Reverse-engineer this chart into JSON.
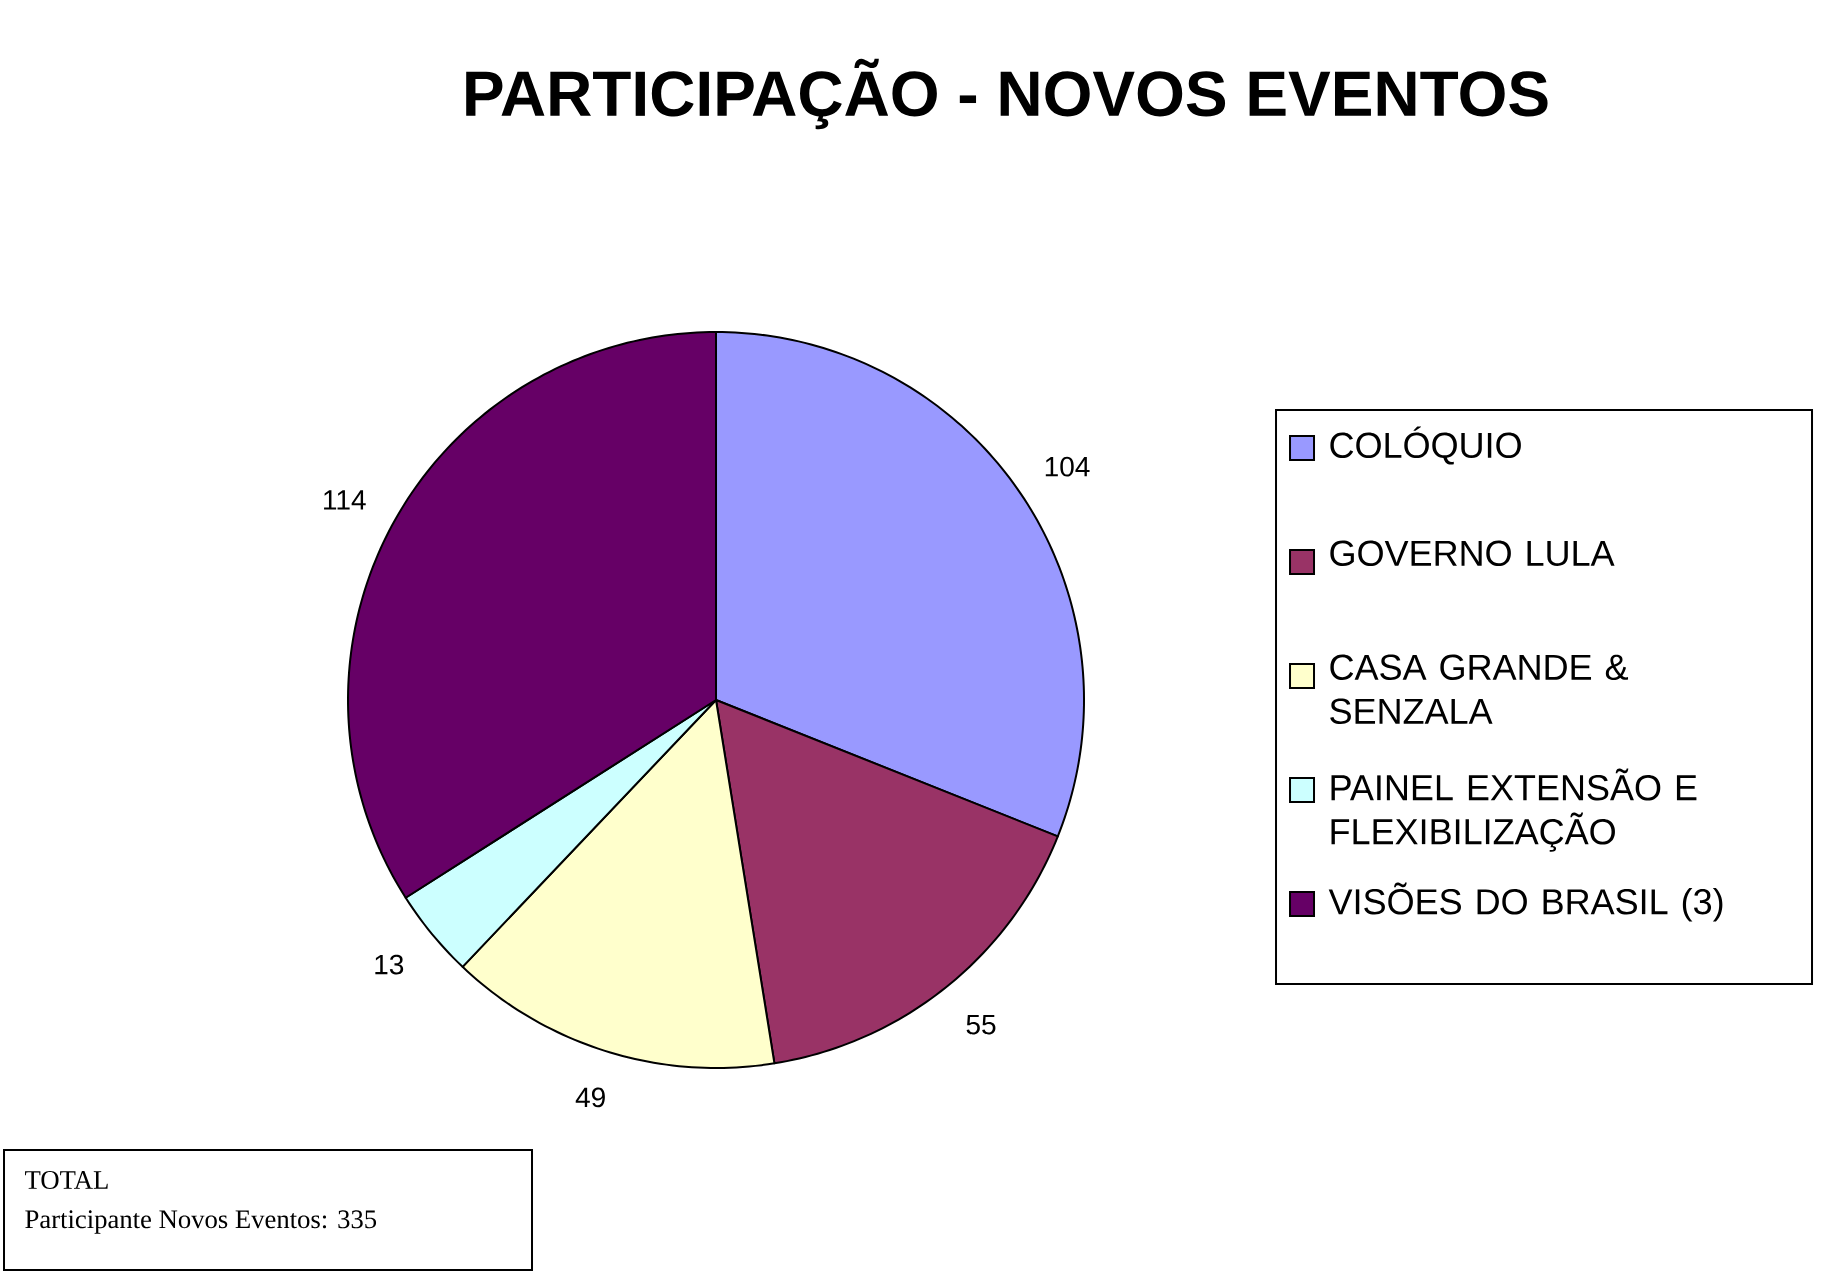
{
  "chart_data": {
    "type": "pie",
    "title": "PARTICIPAÇÃO - NOVOS EVENTOS",
    "categories": [
      "COLÓQUIO",
      "GOVERNO LULA",
      "CASA GRANDE & SENZALA",
      "PAINEL EXTENSÃO E FLEXIBILIZAÇÃO",
      "VISÕES DO BRASIL (3)"
    ],
    "values": [
      104,
      55,
      49,
      13,
      114
    ],
    "colors": [
      "#9999ff",
      "#993366",
      "#ffffcc",
      "#ccffff",
      "#660066"
    ],
    "data_labels": true,
    "legend": "right",
    "annotations": [
      "TOTAL",
      "Participante Novos Eventos: 335"
    ]
  }
}
